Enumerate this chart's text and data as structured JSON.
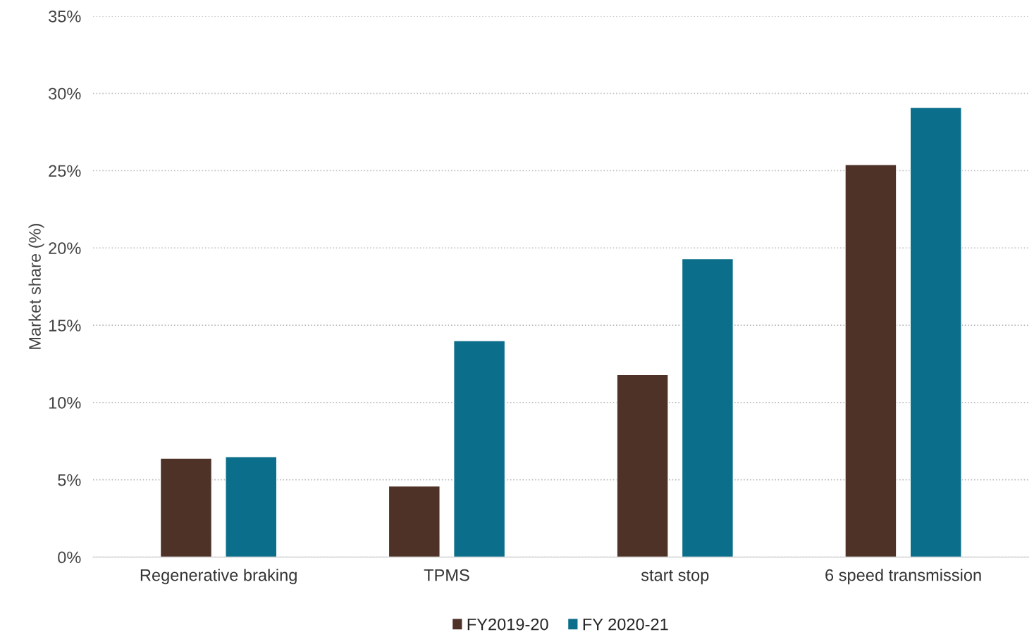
{
  "chart_data": {
    "type": "bar",
    "ylabel": "Market share (%)",
    "categories": [
      "Regenerative braking",
      "TPMS",
      "start stop",
      "6 speed transmission"
    ],
    "series": [
      {
        "name": "FY2019-20",
        "color": "#4e3228",
        "values": [
          6.4,
          4.6,
          11.8,
          25.4
        ]
      },
      {
        "name": "FY 2020-21",
        "color": "#0b6e8a",
        "values": [
          6.5,
          14.0,
          19.3,
          29.1
        ]
      }
    ],
    "ylim": [
      0,
      35
    ],
    "yticks": [
      {
        "value": 0,
        "label": "0%"
      },
      {
        "value": 5,
        "label": "5%"
      },
      {
        "value": 10,
        "label": "10%"
      },
      {
        "value": 15,
        "label": "15%"
      },
      {
        "value": 20,
        "label": "20%"
      },
      {
        "value": 25,
        "label": "25%"
      },
      {
        "value": 30,
        "label": "30%"
      },
      {
        "value": 35,
        "label": "35%"
      }
    ],
    "grid": "y",
    "legend": "bottom"
  }
}
